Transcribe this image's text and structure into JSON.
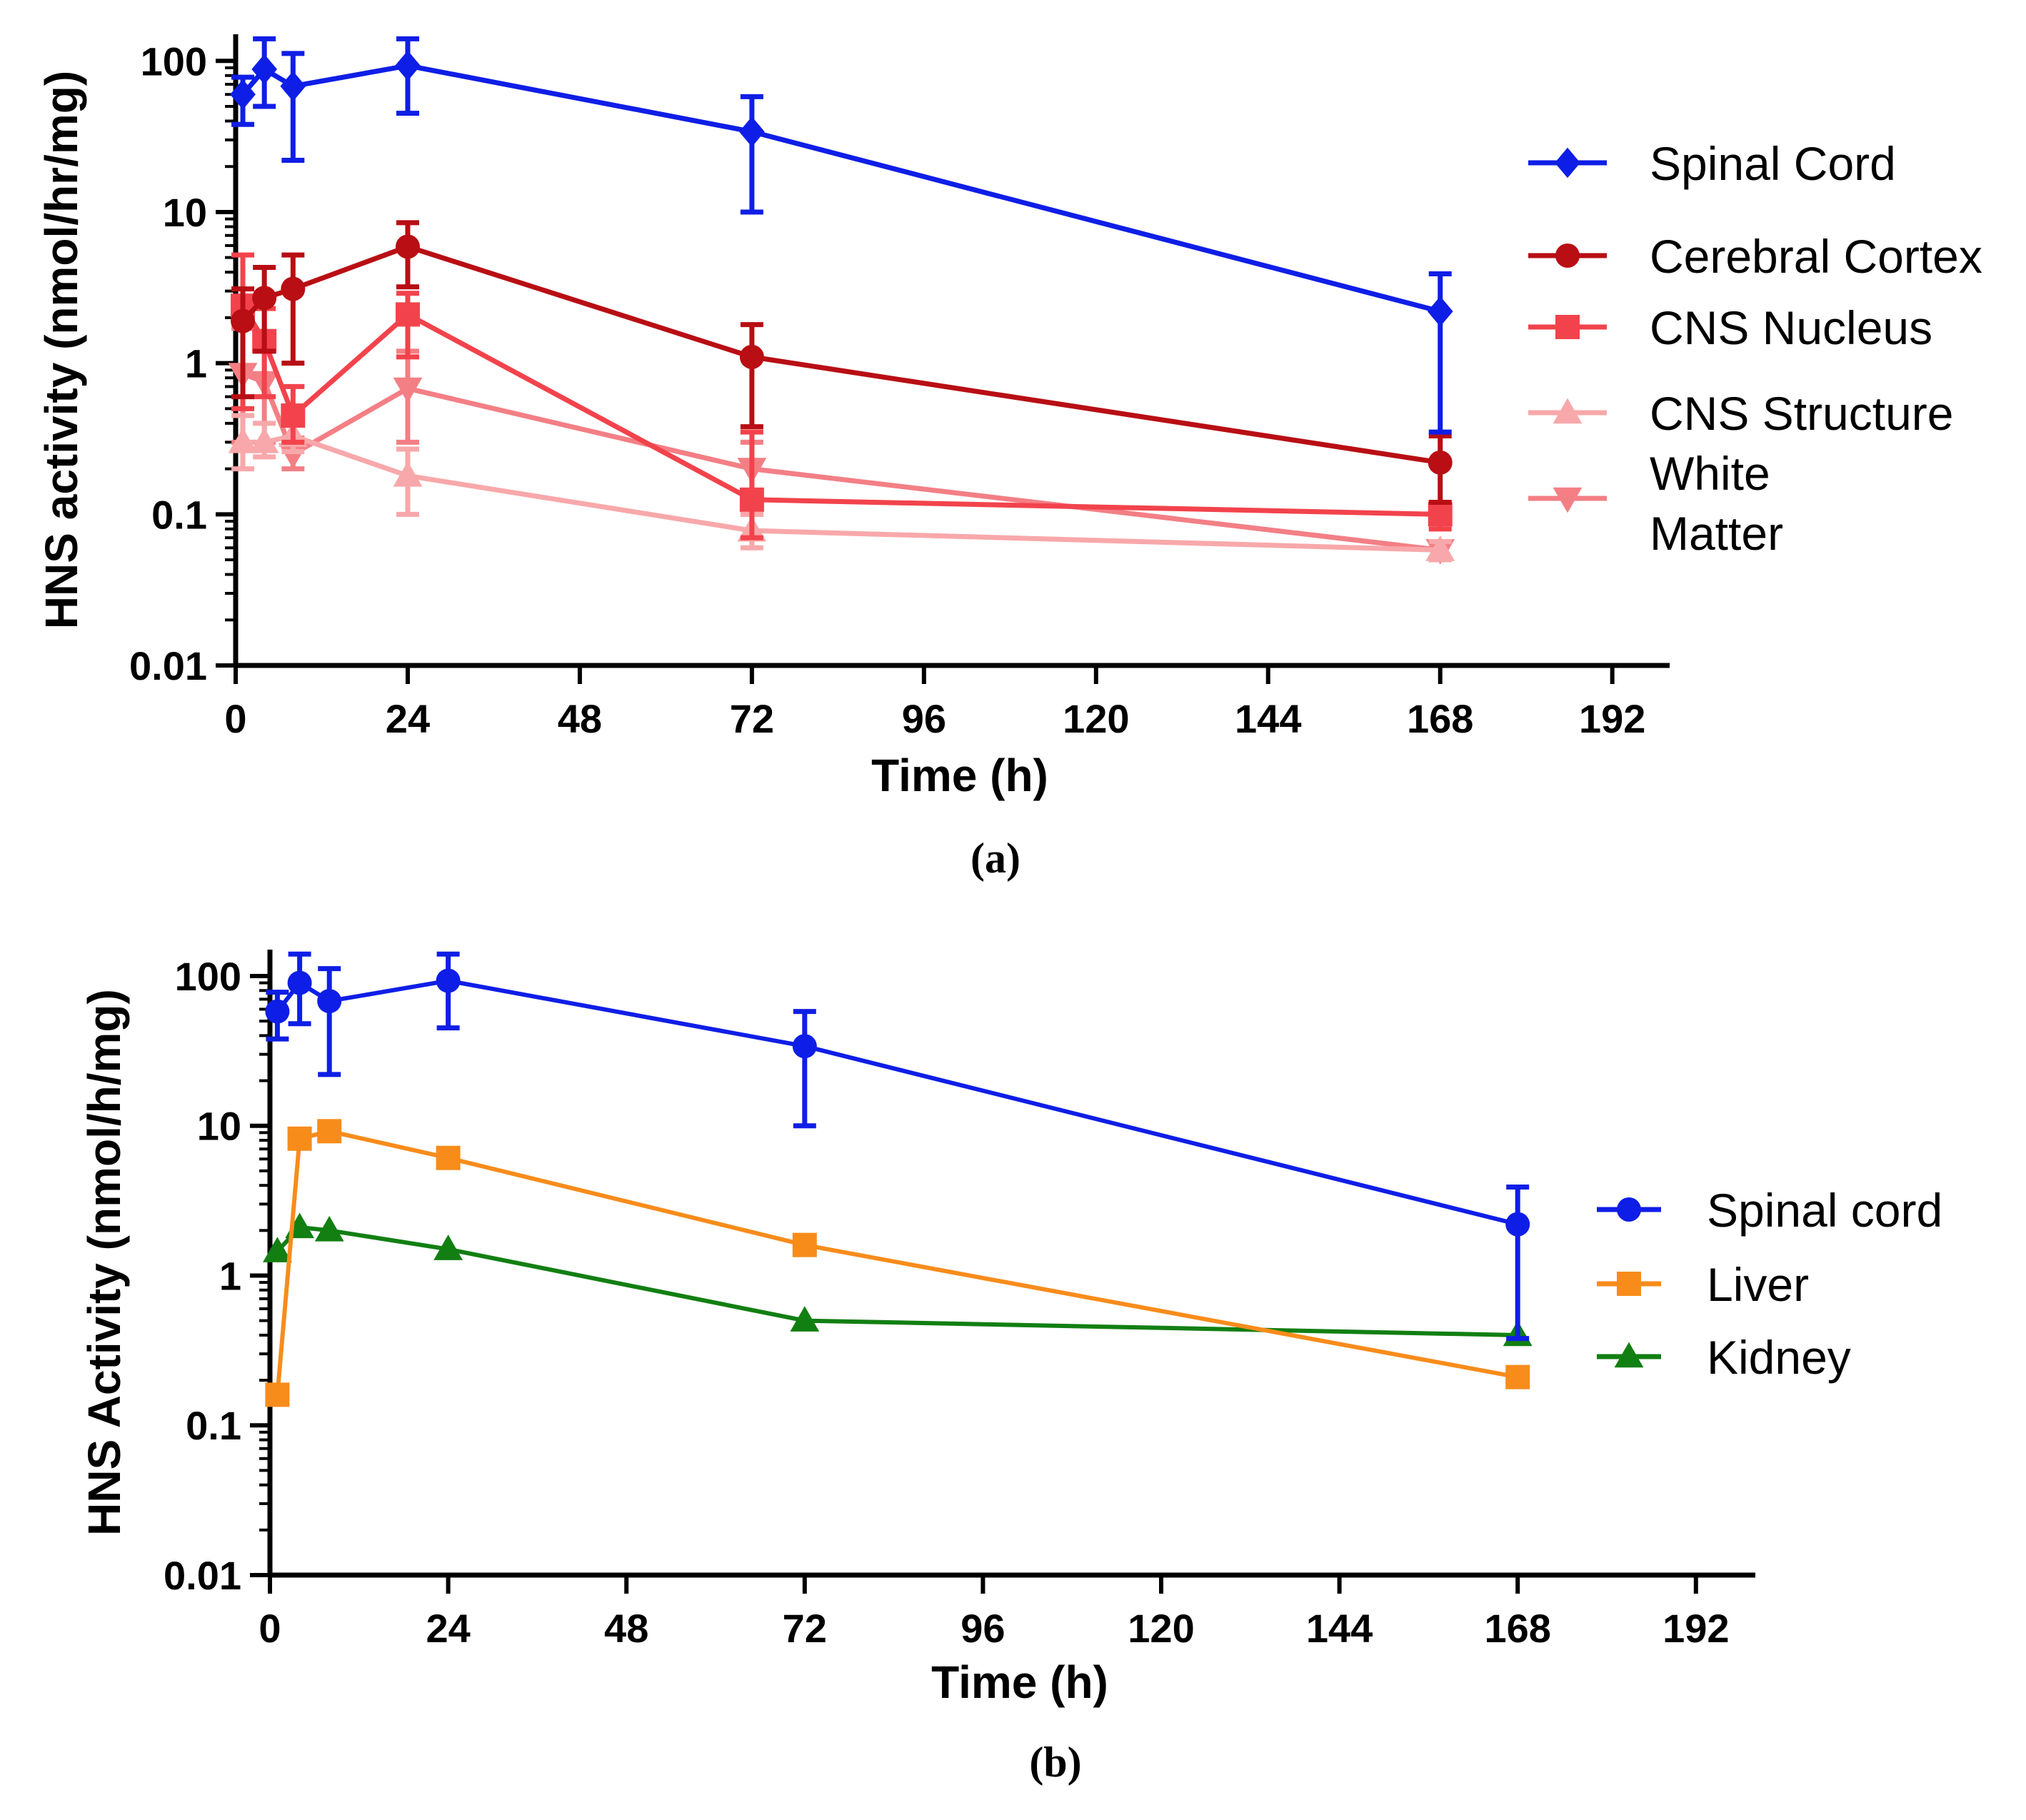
{
  "chart_data": [
    {
      "type": "line",
      "panel_label": "(a)",
      "xlabel": "Time (h)",
      "ylabel": "HNS activity (nmol/hr/mg)",
      "yscale": "log",
      "xlim": [
        0,
        200
      ],
      "ylim": [
        0.01,
        150
      ],
      "xticks": [
        "0",
        "24",
        "48",
        "72",
        "96",
        "120",
        "144",
        "168",
        "192"
      ],
      "yticks": [
        "0.01",
        "0.1",
        "1",
        "10",
        "100"
      ],
      "legend_position": "right",
      "series": [
        {
          "name": "Spinal Cord",
          "color": "#0f1ee6",
          "marker": "diamond",
          "x": [
            1,
            4,
            8,
            24,
            72,
            168
          ],
          "y": [
            60,
            88,
            68,
            93,
            34,
            2.2
          ],
          "err_lo": [
            38,
            50,
            22,
            45,
            10,
            0.35
          ],
          "err_hi": [
            78,
            140,
            112,
            140,
            58,
            3.9
          ]
        },
        {
          "name": "Cerebral Cortex",
          "color": "#b80e14",
          "marker": "circle",
          "x": [
            1,
            4,
            8,
            24,
            72,
            168
          ],
          "y": [
            1.9,
            2.7,
            3.1,
            5.9,
            1.1,
            0.22
          ],
          "err_lo": [
            0.6,
            1.2,
            1.0,
            3.2,
            0.38,
            0.12
          ],
          "err_hi": [
            3.1,
            4.3,
            5.2,
            8.5,
            1.8,
            0.33
          ]
        },
        {
          "name": "CNS Nucleus",
          "color": "#f2434c",
          "marker": "square",
          "x": [
            1,
            4,
            8,
            24,
            72,
            168
          ],
          "y": [
            2.4,
            1.4,
            0.45,
            2.1,
            0.125,
            0.1
          ],
          "err_lo": [
            0.5,
            0.6,
            0.3,
            1.1,
            0.07,
            0.08
          ],
          "err_hi": [
            5.2,
            2.3,
            0.7,
            2.9,
            0.35,
            0.12
          ]
        },
        {
          "name": "CNS Structure",
          "color": "#f8a8aa",
          "marker": "triangle-up",
          "x": [
            1,
            4,
            8,
            24,
            72,
            168
          ],
          "y": [
            0.3,
            0.3,
            0.33,
            0.18,
            0.078,
            0.058
          ],
          "err_lo": [
            0.2,
            0.24,
            0.26,
            0.1,
            0.06,
            0.05
          ],
          "err_hi": [
            0.45,
            0.4,
            0.4,
            0.27,
            0.1,
            0.066
          ]
        },
        {
          "name": "White Matter",
          "color": "#f37f85",
          "marker": "triangle-down",
          "x": [
            1,
            4,
            8,
            24,
            72,
            168
          ],
          "y": [
            0.85,
            0.75,
            0.25,
            0.68,
            0.2,
            0.058
          ],
          "err_lo": [
            0.3,
            0.3,
            0.2,
            0.3,
            0.1,
            0.05
          ],
          "err_hi": [
            1.7,
            1.2,
            0.32,
            1.2,
            0.3,
            0.066
          ]
        }
      ]
    },
    {
      "type": "line",
      "panel_label": "(b)",
      "xlabel": "Time (h)",
      "ylabel": "HNS Activity (nmol/h/mg)",
      "yscale": "log",
      "xlim": [
        0,
        200
      ],
      "ylim": [
        0.01,
        150
      ],
      "xticks": [
        "0",
        "24",
        "48",
        "72",
        "96",
        "120",
        "144",
        "168",
        "192"
      ],
      "yticks": [
        "0.01",
        "0.1",
        "1",
        "10",
        "100"
      ],
      "legend_position": "right",
      "series": [
        {
          "name": "Spinal cord",
          "color": "#0f1ee6",
          "marker": "circle",
          "x": [
            1,
            4,
            8,
            24,
            72,
            168
          ],
          "y": [
            58,
            90,
            68,
            93,
            34,
            2.2
          ],
          "err_lo": [
            38,
            48,
            22,
            45,
            10,
            0.38
          ],
          "err_hi": [
            78,
            140,
            112,
            140,
            58,
            3.9
          ]
        },
        {
          "name": "Liver",
          "color": "#f78c1b",
          "marker": "square",
          "x": [
            1,
            4,
            8,
            24,
            72,
            168
          ],
          "y": [
            0.16,
            8.2,
            9.2,
            6.1,
            1.6,
            0.21
          ]
        },
        {
          "name": "Kidney",
          "color": "#127f12",
          "marker": "triangle-up",
          "x": [
            1,
            4,
            8,
            24,
            72,
            168
          ],
          "y": [
            1.45,
            2.1,
            2.0,
            1.5,
            0.5,
            0.4
          ]
        }
      ]
    }
  ]
}
